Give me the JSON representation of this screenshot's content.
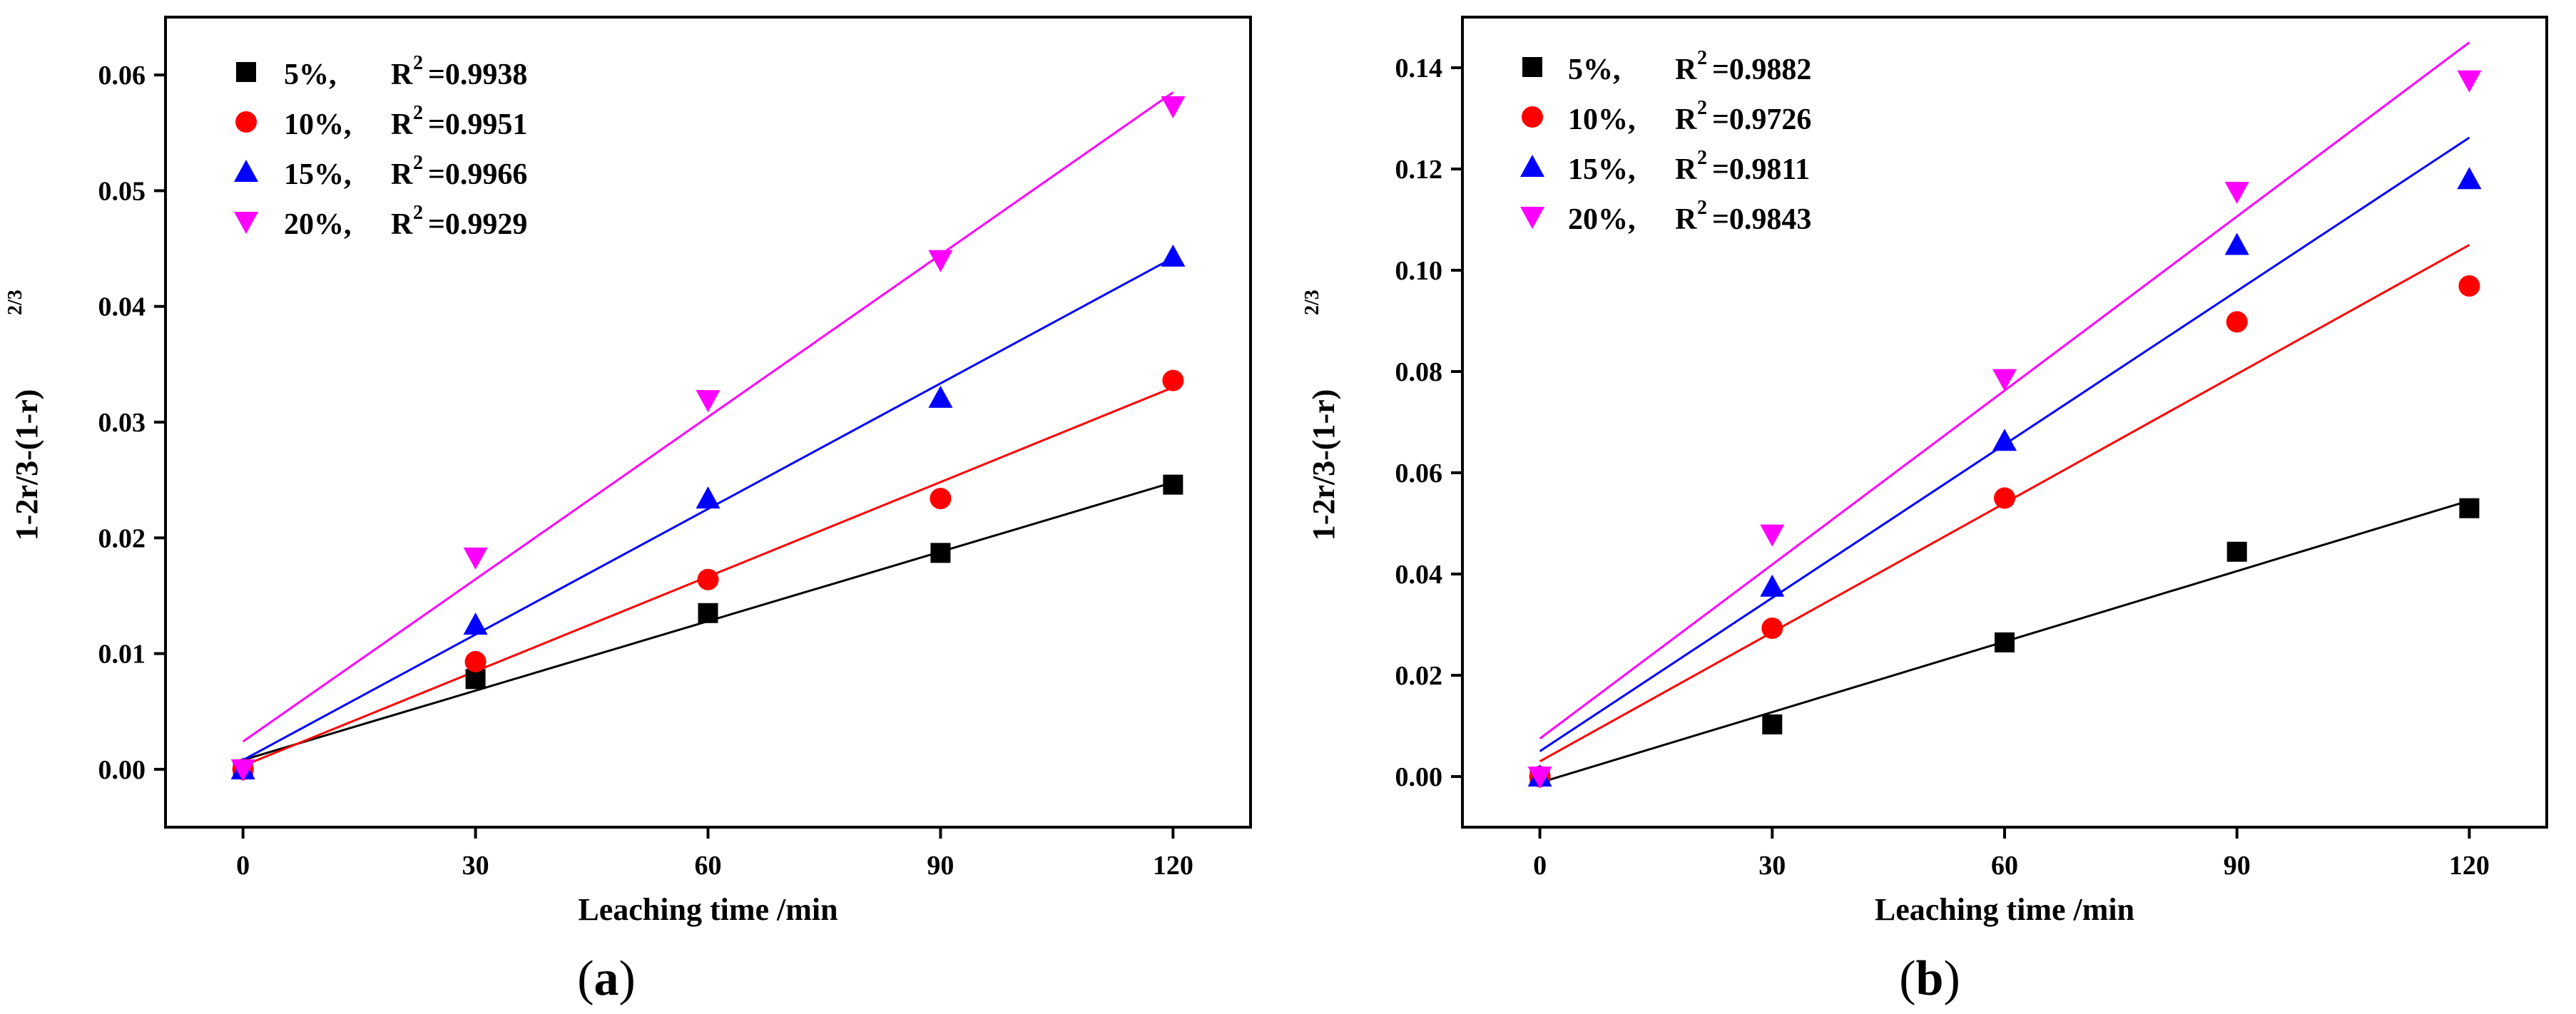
{
  "chart_data": [
    {
      "type": "scatter",
      "panel_label": "a",
      "xlabel": "Leaching time /min",
      "ylabel": "1-2r/3-(1-r)",
      "ylabel_sup": "2/3",
      "xlim": [
        -10,
        130
      ],
      "ylim": [
        -0.005,
        0.065
      ],
      "x_ticks": [
        0,
        30,
        60,
        90,
        120
      ],
      "y_ticks": [
        0.0,
        0.01,
        0.02,
        0.03,
        0.04,
        0.05,
        0.06
      ],
      "x_tick_labels": [
        "0",
        "30",
        "60",
        "90",
        "120"
      ],
      "y_tick_labels": [
        "0.00",
        "0.01",
        "0.02",
        "0.03",
        "0.04",
        "0.05",
        "0.06"
      ],
      "legend_position": "top-left",
      "series": [
        {
          "name": "5%,",
          "r2_label": "=0.9938",
          "marker": "square",
          "color": "#000000",
          "x": [
            0,
            30,
            60,
            90,
            120
          ],
          "y": [
            0.0,
            0.0078,
            0.0135,
            0.0187,
            0.0246
          ],
          "fit": {
            "x": [
              0,
              120
            ],
            "y": [
              0.0008,
              0.0248
            ]
          }
        },
        {
          "name": "10%,",
          "r2_label": "=0.9951",
          "marker": "circle",
          "color": "#ff0000",
          "x": [
            0,
            30,
            60,
            90,
            120
          ],
          "y": [
            0.0,
            0.0093,
            0.0164,
            0.0234,
            0.0336
          ],
          "fit": {
            "x": [
              0,
              120
            ],
            "y": [
              0.0003,
              0.033
            ]
          }
        },
        {
          "name": "15%,",
          "r2_label": "=0.9966",
          "marker": "triangle-up",
          "color": "#0000ff",
          "x": [
            0,
            30,
            60,
            90,
            120
          ],
          "y": [
            0.0,
            0.0125,
            0.0234,
            0.0321,
            0.0443
          ],
          "fit": {
            "x": [
              0,
              120
            ],
            "y": [
              0.0008,
              0.0442
            ]
          }
        },
        {
          "name": "20%,",
          "r2_label": "=0.9929",
          "marker": "triangle-down",
          "color": "#ff00ff",
          "x": [
            0,
            30,
            60,
            90,
            120
          ],
          "y": [
            0.0,
            0.0183,
            0.0319,
            0.044,
            0.0573
          ],
          "fit": {
            "x": [
              0,
              120
            ],
            "y": [
              0.0024,
              0.0585
            ]
          }
        }
      ]
    },
    {
      "type": "scatter",
      "panel_label": "b",
      "xlabel": "Leaching time /min",
      "ylabel": "1-2r/3-(1-r)",
      "ylabel_sup": "2/3",
      "xlim": [
        -10,
        130
      ],
      "ylim": [
        -0.01,
        0.15
      ],
      "x_ticks": [
        0,
        30,
        60,
        90,
        120
      ],
      "y_ticks": [
        0.0,
        0.02,
        0.04,
        0.06,
        0.08,
        0.1,
        0.12,
        0.14
      ],
      "x_tick_labels": [
        "0",
        "30",
        "60",
        "90",
        "120"
      ],
      "y_tick_labels": [
        "0.00",
        "0.02",
        "0.04",
        "0.06",
        "0.08",
        "0.10",
        "0.12",
        "0.14"
      ],
      "legend_position": "top-left",
      "series": [
        {
          "name": "5%,",
          "r2_label": "=0.9882",
          "marker": "square",
          "color": "#000000",
          "x": [
            0,
            30,
            60,
            90,
            120
          ],
          "y": [
            0.0,
            0.0103,
            0.0265,
            0.0444,
            0.053
          ],
          "fit": {
            "x": [
              0,
              120
            ],
            "y": [
              -0.0012,
              0.0545
            ]
          }
        },
        {
          "name": "10%,",
          "r2_label": "=0.9726",
          "marker": "circle",
          "color": "#ff0000",
          "x": [
            0,
            30,
            60,
            90,
            120
          ],
          "y": [
            0.0,
            0.0293,
            0.055,
            0.0898,
            0.0969
          ],
          "fit": {
            "x": [
              0,
              120
            ],
            "y": [
              0.003,
              0.105
            ]
          }
        },
        {
          "name": "15%,",
          "r2_label": "=0.9811",
          "marker": "triangle-up",
          "color": "#0000ff",
          "x": [
            0,
            30,
            60,
            90,
            120
          ],
          "y": [
            0.0,
            0.0375,
            0.0663,
            0.105,
            0.118
          ],
          "fit": {
            "x": [
              0,
              120
            ],
            "y": [
              0.005,
              0.1262
            ]
          }
        },
        {
          "name": "20%,",
          "r2_label": "=0.9843",
          "marker": "triangle-down",
          "color": "#ff00ff",
          "x": [
            0,
            30,
            60,
            90,
            120
          ],
          "y": [
            0.0,
            0.0478,
            0.0785,
            0.1155,
            0.1375
          ],
          "fit": {
            "x": [
              0,
              120
            ],
            "y": [
              0.0075,
              0.145
            ]
          }
        }
      ]
    }
  ],
  "legend_r2_text": "R",
  "legend_r2_sup": "2"
}
